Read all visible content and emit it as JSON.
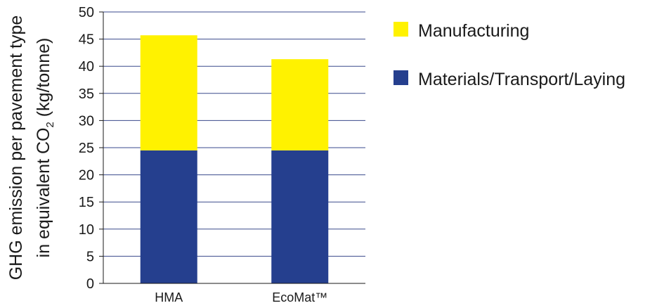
{
  "chart_data": {
    "type": "bar",
    "stacked": true,
    "categories": [
      "HMA",
      "EcoMat™"
    ],
    "series": [
      {
        "name": "Materials/Transport/Laying",
        "color": "#253F8E",
        "values": [
          24.5,
          24.5
        ]
      },
      {
        "name": "Manufacturing",
        "color": "#FFF200",
        "values": [
          21.2,
          16.8
        ]
      }
    ],
    "ylabel": {
      "line1": "GHG emission per pavement type",
      "line2_prefix": "in equivalent CO",
      "line2_subscript": "2",
      "line2_suffix": " (kg/tonne)"
    },
    "ylim": [
      0,
      50
    ],
    "yticks": [
      0,
      5,
      10,
      15,
      20,
      25,
      30,
      35,
      40,
      45,
      50
    ],
    "grid": true,
    "legend_position": "right",
    "legend_order": [
      "Manufacturing",
      "Materials/Transport/Laying"
    ]
  }
}
